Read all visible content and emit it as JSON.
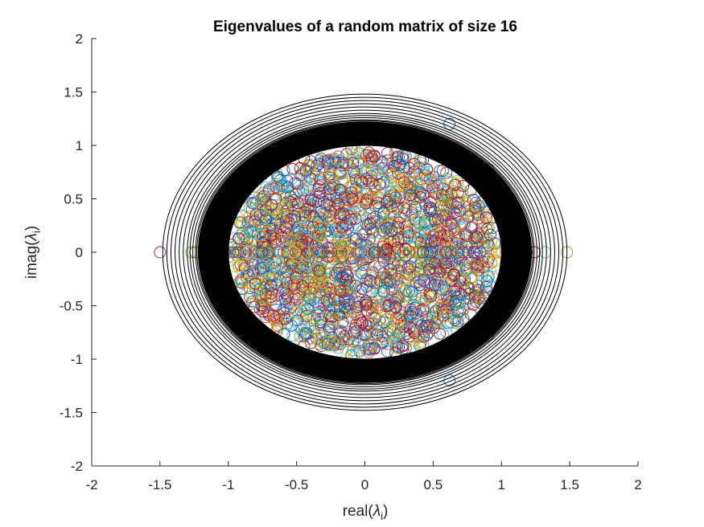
{
  "chart_data": {
    "type": "scatter",
    "title": "Eigenvalues of a random matrix of size 16",
    "xlabel": "real(λi)",
    "ylabel": "imag(λi)",
    "xlabel_parts": {
      "prefix": "real(",
      "symbol": "λ",
      "sub": "i",
      "suffix": ")"
    },
    "ylabel_parts": {
      "prefix": "imag(",
      "symbol": "λ",
      "sub": "i",
      "suffix": ")"
    },
    "xlim": [
      -2,
      2
    ],
    "ylim": [
      -2,
      2
    ],
    "xticks": [
      "-2",
      "-1.5",
      "-1",
      "-0.5",
      "0",
      "0.5",
      "1",
      "1.5",
      "2"
    ],
    "yticks": [
      "-2",
      "-1.5",
      "-1",
      "-0.5",
      "0",
      "0.5",
      "1",
      "1.5",
      "2"
    ],
    "grid": false,
    "legend": "none",
    "marker": "open-circle",
    "colors": [
      "#0072BD",
      "#D95319",
      "#EDB120",
      "#7E2F8E",
      "#77AC30",
      "#4DBEEE",
      "#A2142F"
    ],
    "circle_color": "#000000",
    "bounding_circles_radii": [
      1.02,
      1.04,
      1.05,
      1.06,
      1.07,
      1.08,
      1.09,
      1.1,
      1.11,
      1.12,
      1.13,
      1.14,
      1.15,
      1.16,
      1.17,
      1.18,
      1.19,
      1.2,
      1.21,
      1.22,
      1.23,
      1.24,
      1.26,
      1.28,
      1.3,
      1.33,
      1.36,
      1.39,
      1.42,
      1.45,
      1.48
    ],
    "outlier_points": [
      {
        "x": -1.5,
        "y": 0,
        "color": "#7E2F8E"
      },
      {
        "x": 1.48,
        "y": 0,
        "color": "#77AC30"
      },
      {
        "x": 1.32,
        "y": 0,
        "color": "#4DBEEE"
      },
      {
        "x": -1.27,
        "y": 0,
        "color": "#77AC30"
      },
      {
        "x": 0.62,
        "y": 1.2,
        "color": "#0072BD"
      },
      {
        "x": 0.62,
        "y": -1.2,
        "color": "#0072BD"
      },
      {
        "x": -0.43,
        "y": 0.97,
        "color": "#0072BD"
      },
      {
        "x": -0.43,
        "y": -0.97,
        "color": "#0072BD"
      },
      {
        "x": 0.9,
        "y": 0.78,
        "color": "#D95319"
      },
      {
        "x": 0.9,
        "y": -0.78,
        "color": "#D95319"
      },
      {
        "x": -0.43,
        "y": 1.08,
        "color": "#D95319"
      },
      {
        "x": -0.43,
        "y": -1.08,
        "color": "#D95319"
      }
    ],
    "cloud": {
      "count": 1100,
      "radius_max": 1.0,
      "real_axis_count": 140,
      "real_axis_extent": 1.25
    }
  }
}
